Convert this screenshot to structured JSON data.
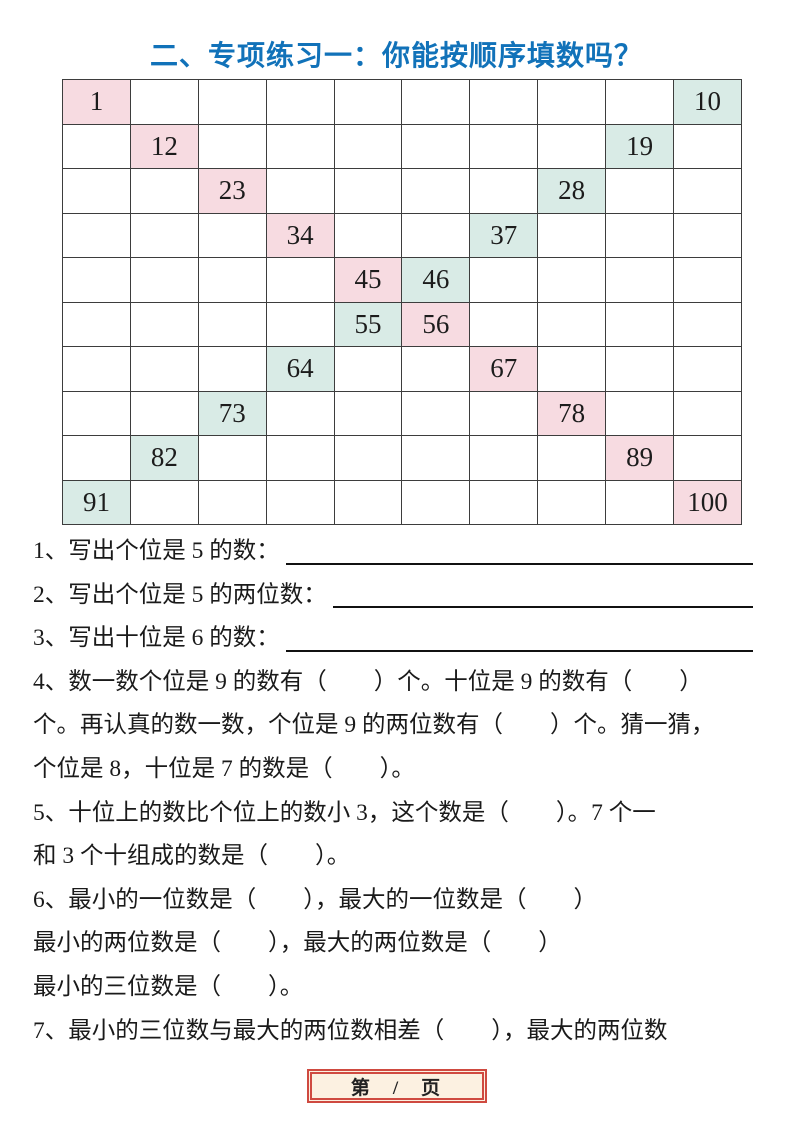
{
  "title": "二、专项练习一：你能按顺序填数吗？",
  "colors": {
    "title_blue": "#1172b9",
    "cell_pink": "#f7dbe1",
    "cell_teal": "#d9ebe6",
    "grid_border": "#3d3d3d",
    "footer_bg": "#fcf1e1",
    "footer_border": "#cf4a40"
  },
  "grid": {
    "rows": 10,
    "cols": 10,
    "filled_cells": [
      {
        "row": 0,
        "col": 0,
        "value": "1",
        "color": "pink"
      },
      {
        "row": 0,
        "col": 9,
        "value": "10",
        "color": "teal"
      },
      {
        "row": 1,
        "col": 1,
        "value": "12",
        "color": "pink"
      },
      {
        "row": 1,
        "col": 8,
        "value": "19",
        "color": "teal"
      },
      {
        "row": 2,
        "col": 2,
        "value": "23",
        "color": "pink"
      },
      {
        "row": 2,
        "col": 7,
        "value": "28",
        "color": "teal"
      },
      {
        "row": 3,
        "col": 3,
        "value": "34",
        "color": "pink"
      },
      {
        "row": 3,
        "col": 6,
        "value": "37",
        "color": "teal"
      },
      {
        "row": 4,
        "col": 4,
        "value": "45",
        "color": "pink"
      },
      {
        "row": 4,
        "col": 5,
        "value": "46",
        "color": "teal"
      },
      {
        "row": 5,
        "col": 4,
        "value": "55",
        "color": "teal"
      },
      {
        "row": 5,
        "col": 5,
        "value": "56",
        "color": "pink"
      },
      {
        "row": 6,
        "col": 3,
        "value": "64",
        "color": "teal"
      },
      {
        "row": 6,
        "col": 6,
        "value": "67",
        "color": "pink"
      },
      {
        "row": 7,
        "col": 2,
        "value": "73",
        "color": "teal"
      },
      {
        "row": 7,
        "col": 7,
        "value": "78",
        "color": "pink"
      },
      {
        "row": 8,
        "col": 1,
        "value": "82",
        "color": "teal"
      },
      {
        "row": 8,
        "col": 8,
        "value": "89",
        "color": "pink"
      },
      {
        "row": 9,
        "col": 0,
        "value": "91",
        "color": "teal"
      },
      {
        "row": 9,
        "col": 9,
        "value": "100",
        "color": "pink"
      }
    ]
  },
  "questions": {
    "lines": [
      {
        "text": "1、写出个位是 5 的数：",
        "blank": true
      },
      {
        "text": "2、写出个位是 5 的两位数：",
        "blank": true
      },
      {
        "text": "3、写出十位是 6 的数：",
        "blank": true
      },
      {
        "text": "4、数一数个位是 9 的数有（　　）个。十位是 9 的数有（　　）",
        "blank": false
      },
      {
        "text": "个。再认真的数一数，个位是 9 的两位数有（　　）个。猜一猜，",
        "blank": false
      },
      {
        "text": "个位是 8，十位是 7 的数是（　　）。",
        "blank": false
      },
      {
        "text": "5、十位上的数比个位上的数小 3，这个数是（　　）。7 个一",
        "blank": false
      },
      {
        "text": "和 3 个十组成的数是（　　）。",
        "blank": false
      },
      {
        "text": "6、最小的一位数是（　　），最大的一位数是（　　）",
        "blank": false
      },
      {
        "text": "最小的两位数是（　　），最大的两位数是（　　）",
        "blank": false
      },
      {
        "text": "最小的三位数是（　　）。",
        "blank": false
      },
      {
        "text": "7、最小的三位数与最大的两位数相差（　　），最大的两位数",
        "blank": false
      }
    ]
  },
  "footer": {
    "label": "第　/　页"
  }
}
